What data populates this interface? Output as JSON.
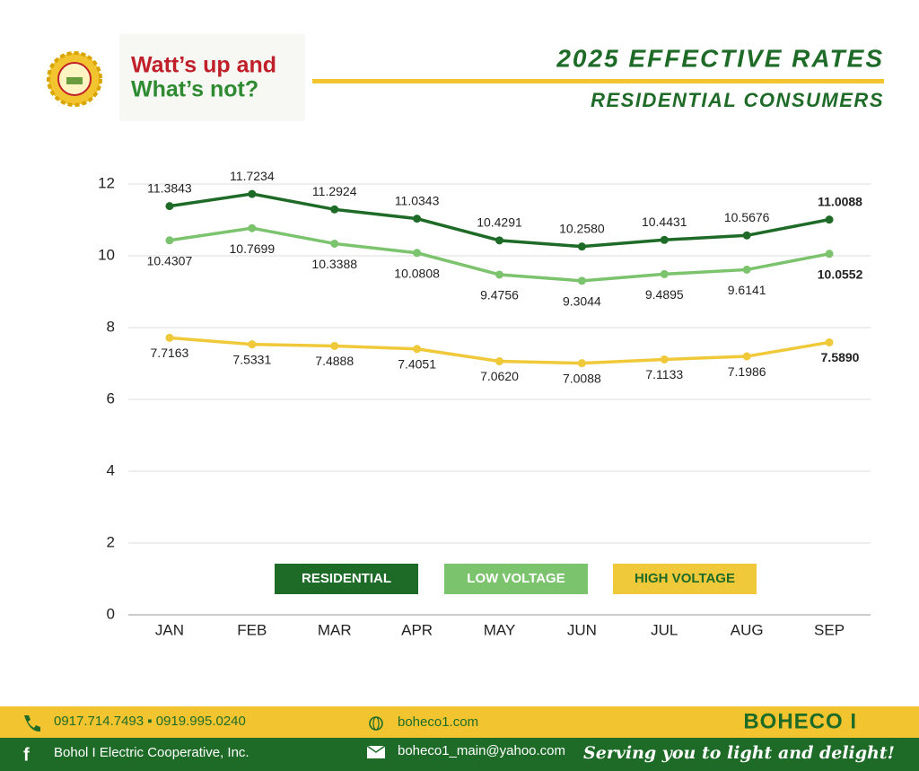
{
  "branding": {
    "logo_line1": "Watt’s up and",
    "logo_line2": "What’s not?",
    "title": "2025 EFFECTIVE RATES",
    "subtitle": "RESIDENTIAL CONSUMERS"
  },
  "chart_data": {
    "type": "line",
    "categories": [
      "JAN",
      "FEB",
      "MAR",
      "APR",
      "MAY",
      "JUN",
      "JUL",
      "AUG",
      "SEP"
    ],
    "ylim": [
      0,
      12
    ],
    "yticks": [
      0,
      2,
      4,
      6,
      8,
      10,
      12
    ],
    "grid": true,
    "series": [
      {
        "name": "RESIDENTIAL",
        "color": "#1e6b28",
        "values": [
          11.3843,
          11.7234,
          11.2924,
          11.0343,
          10.4291,
          10.258,
          10.4431,
          10.5676,
          11.0088
        ],
        "value_labels": [
          "11.3843",
          "11.7234",
          "11.2924",
          "11.0343",
          "10.4291",
          "10.2580",
          "10.4431",
          "10.5676",
          "11.0088"
        ]
      },
      {
        "name": "LOW VOLTAGE",
        "color": "#7cc36e",
        "values": [
          10.4307,
          10.7699,
          10.3388,
          10.0808,
          9.4756,
          9.3044,
          9.4895,
          9.6141,
          10.0552
        ],
        "value_labels": [
          "10.4307",
          "10.7699",
          "10.3388",
          "10.0808",
          "9.4756",
          "9.3044",
          "9.4895",
          "9.6141",
          "10.0552"
        ]
      },
      {
        "name": "HIGH VOLTAGE",
        "color": "#f0c93a",
        "values": [
          7.7163,
          7.5331,
          7.4888,
          7.4051,
          7.062,
          7.0088,
          7.1133,
          7.1986,
          7.589
        ],
        "value_labels": [
          "7.7163",
          "7.5331",
          "7.4888",
          "7.4051",
          "7.0620",
          "7.0088",
          "7.1133",
          "7.1986",
          "7.5890"
        ]
      }
    ]
  },
  "footer": {
    "phones": "0917.714.7493 ▪ 0919.995.0240",
    "website": "boheco1.com",
    "brand": "BOHECO I",
    "company": "Bohol I Electric Cooperative, Inc.",
    "email": "boheco1_main@yahoo.com",
    "tagline": "Serving you to light and delight!"
  }
}
